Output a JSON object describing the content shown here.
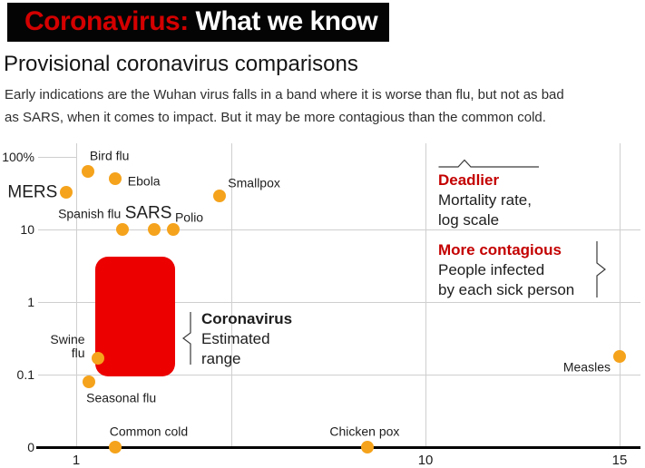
{
  "header": {
    "title_red": "Coronavirus:",
    "title_white": " What we know",
    "subtitle": "Provisional coronavirus comparisons",
    "description": "Early indications are the Wuhan virus falls in a band where it is worse than flu, but not as bad\nas SARS, when it comes to impact. But it may be more contagious than the common cold."
  },
  "colors": {
    "banner_bg": "#040404",
    "banner_red": "#d40000",
    "annotation_red": "#c40000",
    "range_box_red": "#ec0000",
    "dot_amber": "#f5a31c",
    "grid_gray": "#cfcfcf"
  },
  "annotations": {
    "deadlier": {
      "heading": "Deadlier",
      "line1": "Mortality rate,",
      "line2": "log scale"
    },
    "contagious": {
      "heading": "More contagious",
      "line1": "People infected",
      "line2": "by each sick person"
    },
    "coronavirus": {
      "heading": "Coronavirus",
      "line1": "Estimated",
      "line2": "range"
    }
  },
  "chart_data": {
    "type": "scatter",
    "title": "Provisional coronavirus comparisons",
    "xlabel": "More contagious - People infected by each sick person",
    "ylabel": "Deadlier - Mortality rate, log scale",
    "x_axis": {
      "scale": "linear",
      "range": [
        1,
        15
      ],
      "ticks": [
        1,
        10,
        15
      ],
      "gridlines": [
        1,
        5,
        10,
        15
      ]
    },
    "y_axis": {
      "scale": "log",
      "unit": "%",
      "ticks": [
        {
          "label": "100%",
          "value": 100,
          "grid": "short"
        },
        {
          "label": "10",
          "value": 10,
          "grid": "full"
        },
        {
          "label": "1",
          "value": 1,
          "grid": "full"
        },
        {
          "label": "0.1",
          "value": 0.1,
          "grid": "full"
        },
        {
          "label": "0",
          "value": 0,
          "grid": "axis"
        }
      ]
    },
    "points": [
      {
        "name": "MERS",
        "x": 0.75,
        "y": 33
      },
      {
        "name": "Bird flu",
        "x": 1.3,
        "y": 63
      },
      {
        "name": "Ebola",
        "x": 2,
        "y": 50
      },
      {
        "name": "Smallpox",
        "x": 4.7,
        "y": 29
      },
      {
        "name": "Spanish flu",
        "x": 2.2,
        "y": 10
      },
      {
        "name": "SARS",
        "x": 3,
        "y": 10
      },
      {
        "name": "Polio",
        "x": 3.5,
        "y": 10
      },
      {
        "name": "Swine\nflu",
        "x": 1.55,
        "y": 0.17
      },
      {
        "name": "Seasonal flu",
        "x": 1.33,
        "y": 0.08
      },
      {
        "name": "Common cold",
        "x": 2,
        "y": 0
      },
      {
        "name": "Chicken pox",
        "x": 8.5,
        "y": 0
      },
      {
        "name": "Measles",
        "x": 15,
        "y": 0.18
      }
    ],
    "coronavirus_range": {
      "label": "Coronavirus Estimated range",
      "x": [
        1.5,
        3.55
      ],
      "y": [
        0.095,
        4.2
      ]
    }
  }
}
